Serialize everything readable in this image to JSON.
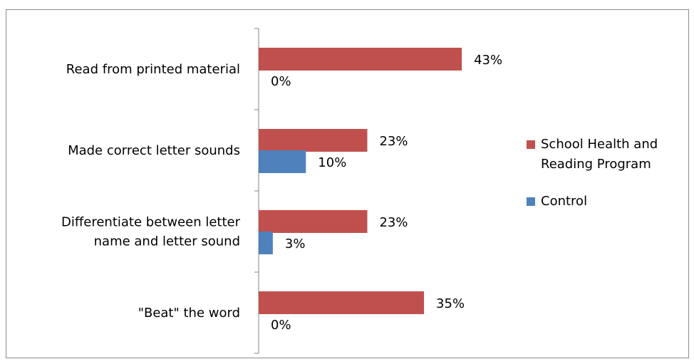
{
  "chart_data": {
    "type": "bar",
    "orientation": "horizontal",
    "categories": [
      "Read from printed material",
      "Made correct letter sounds",
      "Differentiate between letter name and letter sound",
      "\"Beat\" the word"
    ],
    "category_label_lines": [
      [
        "Read from printed material"
      ],
      [
        "Made correct letter sounds"
      ],
      [
        "Differentiate between letter",
        "name and letter sound"
      ],
      [
        "\"Beat\" the word"
      ]
    ],
    "series": [
      {
        "name": "School Health and Reading Program",
        "legend_lines": [
          "School Health and",
          "Reading Program"
        ],
        "color": "#c0504d",
        "values": [
          43,
          23,
          23,
          35
        ],
        "labels": [
          "43%",
          "23%",
          "23%",
          "35%"
        ]
      },
      {
        "name": "Control",
        "legend_lines": [
          "Control"
        ],
        "color": "#4f81bd",
        "values": [
          0,
          10,
          3,
          0
        ],
        "labels": [
          "0%",
          "10%",
          "3%",
          "0%"
        ]
      }
    ],
    "value_unit": "%",
    "xlim": [
      0,
      100
    ],
    "grid": false,
    "axis_visible": false,
    "legend_position": "right"
  }
}
